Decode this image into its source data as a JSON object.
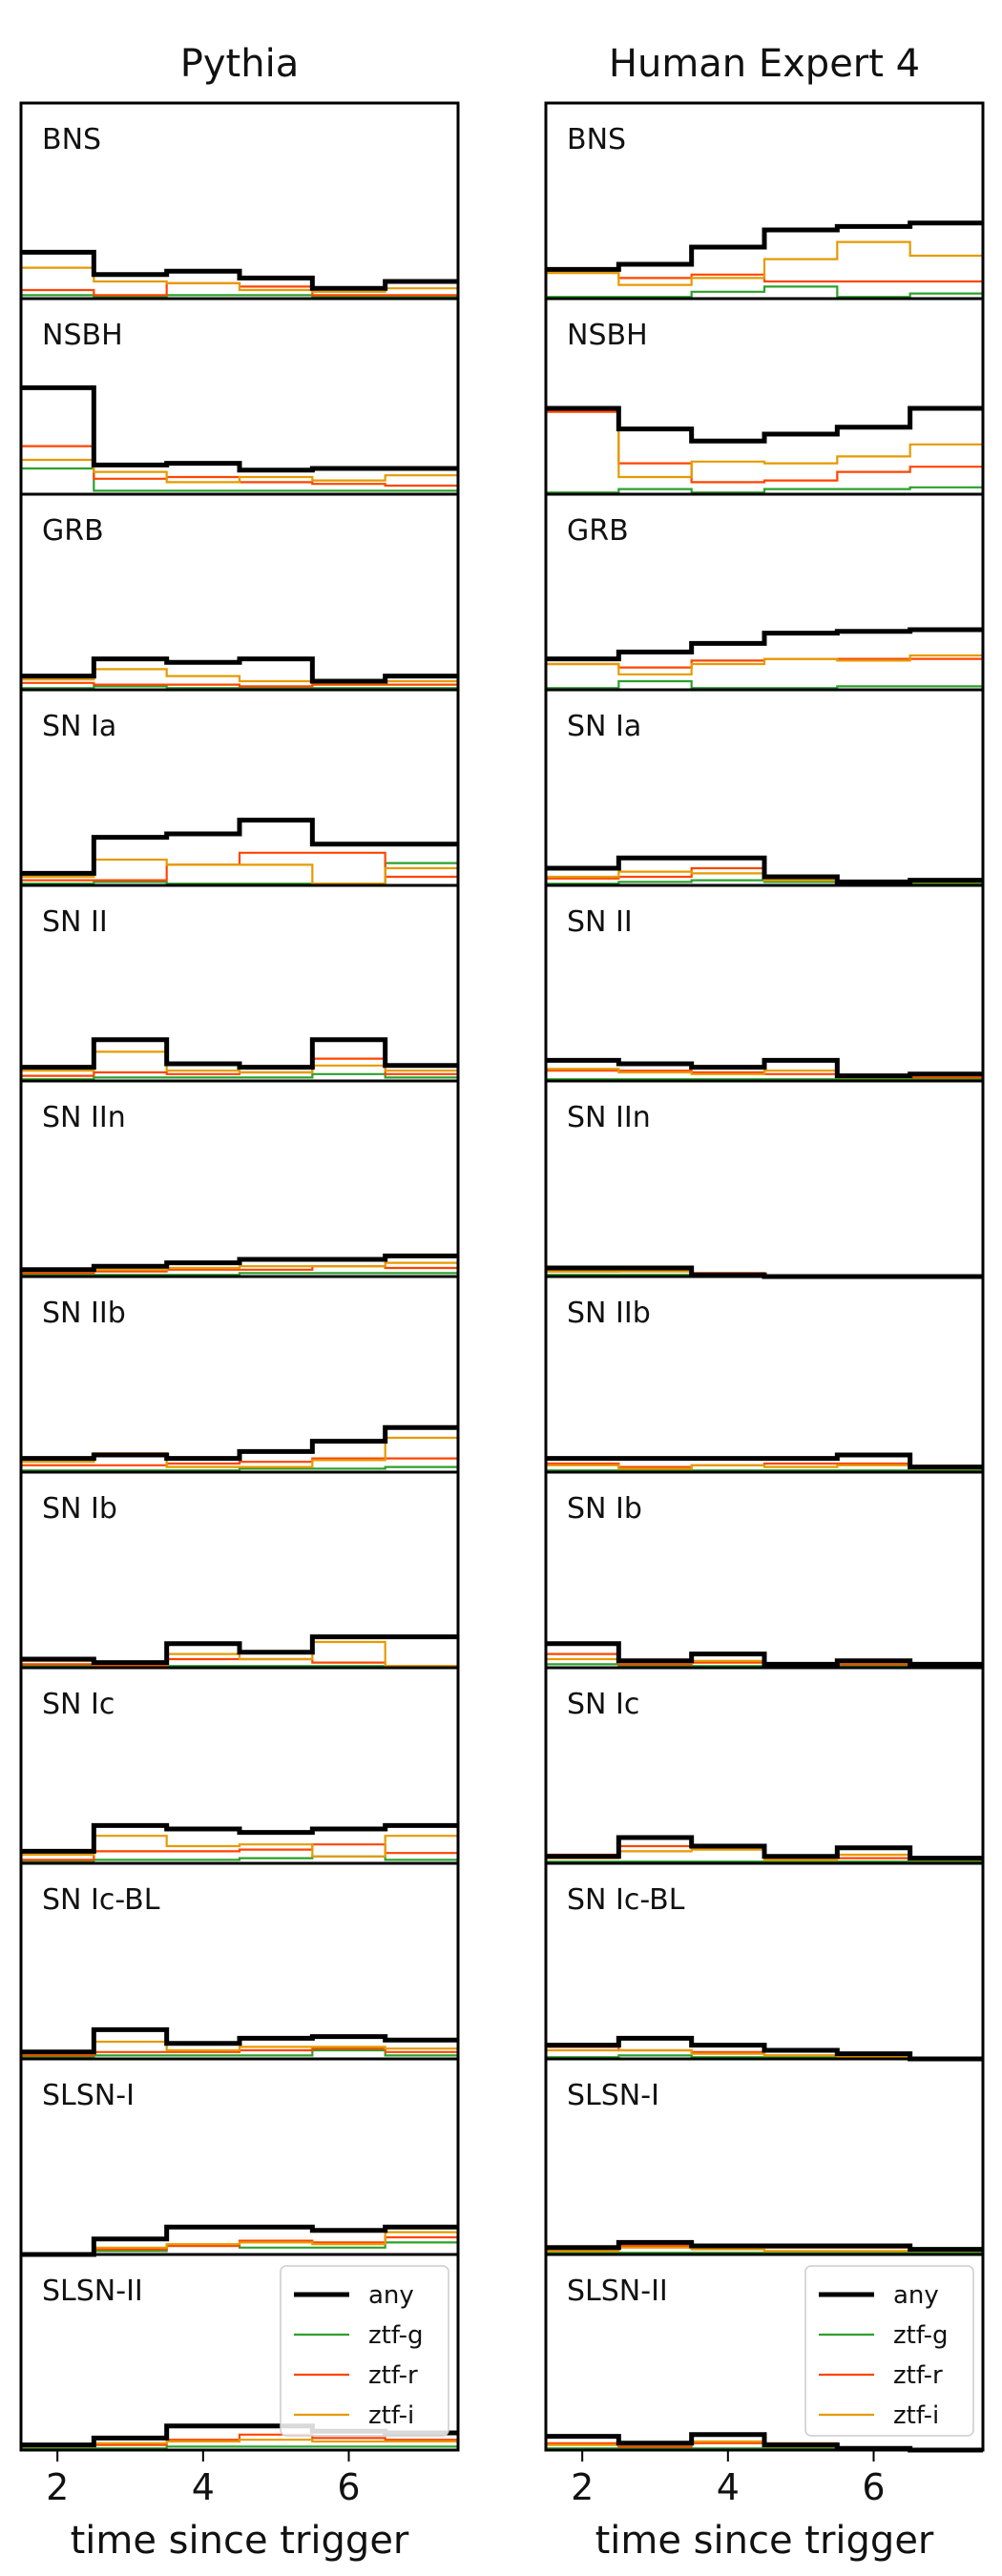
{
  "chart_data": {
    "type": "line",
    "subtype": "step-histogram-grid",
    "columns": [
      "Pythia",
      "Human Expert 4"
    ],
    "rows": [
      "BNS",
      "NSBH",
      "GRB",
      "SN Ia",
      "SN II",
      "SN IIn",
      "SN IIb",
      "SN Ib",
      "SN Ic",
      "SN Ic-BL",
      "SLSN-I",
      "SLSN-II"
    ],
    "xlabel": "time since trigger",
    "xlim": [
      1.5,
      7.5
    ],
    "xticks": [
      2,
      4,
      6
    ],
    "ylim": [
      0,
      1
    ],
    "bin_edges": [
      1.5,
      2.5,
      3.5,
      4.5,
      5.5,
      6.5,
      7.5
    ],
    "grid": false,
    "legend": {
      "placement": "top-right of bottom panels",
      "entries": [
        "any",
        "ztf-g",
        "ztf-r",
        "ztf-i"
      ]
    },
    "series_colors": {
      "any": "#000000",
      "ztf-g": "#2ca02c",
      "ztf-r": "#ff4500",
      "ztf-i": "#e69a00"
    },
    "panels": [
      {
        "column": "Pythia",
        "row": "BNS",
        "series": {
          "any": [
            0.27,
            0.14,
            0.16,
            0.12,
            0.06,
            0.1
          ],
          "ztf-i": [
            0.18,
            0.1,
            0.09,
            0.05,
            0.04,
            0.06
          ],
          "ztf-r": [
            0.05,
            0.02,
            0.09,
            0.07,
            0.02,
            0.02
          ],
          "ztf-g": [
            0.02,
            0.01,
            0.02,
            0.02,
            0.01,
            0.01
          ]
        }
      },
      {
        "column": "Human Expert 4",
        "row": "BNS",
        "series": {
          "any": [
            0.17,
            0.2,
            0.3,
            0.4,
            0.42,
            0.44
          ],
          "ztf-i": [
            0.15,
            0.08,
            0.12,
            0.23,
            0.33,
            0.25
          ],
          "ztf-r": [
            0.15,
            0.12,
            0.14,
            0.1,
            0.1,
            0.1
          ],
          "ztf-g": [
            0.01,
            0.01,
            0.04,
            0.07,
            0.01,
            0.03
          ]
        }
      },
      {
        "column": "Pythia",
        "row": "NSBH",
        "series": {
          "any": [
            0.62,
            0.17,
            0.18,
            0.14,
            0.15,
            0.15
          ],
          "ztf-i": [
            0.2,
            0.13,
            0.07,
            0.1,
            0.08,
            0.11
          ],
          "ztf-r": [
            0.28,
            0.09,
            0.1,
            0.07,
            0.06,
            0.05
          ],
          "ztf-g": [
            0.15,
            0.02,
            0.02,
            0.02,
            0.02,
            0.02
          ]
        }
      },
      {
        "column": "Human Expert 4",
        "row": "NSBH",
        "series": {
          "any": [
            0.5,
            0.38,
            0.31,
            0.35,
            0.39,
            0.5
          ],
          "ztf-i": [
            0.5,
            0.1,
            0.19,
            0.18,
            0.22,
            0.29
          ],
          "ztf-r": [
            0.48,
            0.18,
            0.07,
            0.08,
            0.13,
            0.16
          ],
          "ztf-g": [
            0.01,
            0.03,
            0.01,
            0.03,
            0.03,
            0.04
          ]
        }
      },
      {
        "column": "Pythia",
        "row": "GRB",
        "series": {
          "any": [
            0.08,
            0.18,
            0.16,
            0.18,
            0.05,
            0.08
          ],
          "ztf-i": [
            0.06,
            0.12,
            0.08,
            0.05,
            0.04,
            0.05
          ],
          "ztf-r": [
            0.04,
            0.03,
            0.03,
            0.02,
            0.03,
            0.03
          ],
          "ztf-g": [
            0.01,
            0.02,
            0.01,
            0.01,
            0.01,
            0.01
          ]
        }
      },
      {
        "column": "Human Expert 4",
        "row": "GRB",
        "series": {
          "any": [
            0.18,
            0.22,
            0.27,
            0.33,
            0.34,
            0.35
          ],
          "ztf-i": [
            0.15,
            0.09,
            0.15,
            0.18,
            0.17,
            0.2
          ],
          "ztf-r": [
            0.15,
            0.13,
            0.17,
            0.18,
            0.18,
            0.18
          ],
          "ztf-g": [
            0.01,
            0.05,
            0.01,
            0.01,
            0.02,
            0.02
          ]
        }
      },
      {
        "column": "Pythia",
        "row": "SN Ia",
        "series": {
          "any": [
            0.07,
            0.28,
            0.3,
            0.38,
            0.24,
            0.24
          ],
          "ztf-i": [
            0.05,
            0.15,
            0.12,
            0.12,
            0.01,
            0.1
          ],
          "ztf-r": [
            0.03,
            0.03,
            0.12,
            0.19,
            0.19,
            0.05
          ],
          "ztf-g": [
            0.01,
            0.02,
            0.01,
            0.01,
            0.01,
            0.13
          ]
        }
      },
      {
        "column": "Human Expert 4",
        "row": "SN Ia",
        "series": {
          "any": [
            0.1,
            0.16,
            0.16,
            0.05,
            0.02,
            0.03
          ],
          "ztf-i": [
            0.05,
            0.08,
            0.07,
            0.03,
            0.01,
            0.02
          ],
          "ztf-r": [
            0.04,
            0.05,
            0.1,
            0.04,
            0.01,
            0.03
          ],
          "ztf-g": [
            0.01,
            0.02,
            0.03,
            0.02,
            0.01,
            0.01
          ]
        }
      },
      {
        "column": "Pythia",
        "row": "SN II",
        "series": {
          "any": [
            0.08,
            0.24,
            0.1,
            0.08,
            0.24,
            0.09
          ],
          "ztf-i": [
            0.06,
            0.17,
            0.06,
            0.05,
            0.09,
            0.06
          ],
          "ztf-r": [
            0.03,
            0.05,
            0.04,
            0.05,
            0.13,
            0.04
          ],
          "ztf-g": [
            0.01,
            0.02,
            0.02,
            0.02,
            0.04,
            0.02
          ]
        }
      },
      {
        "column": "Human Expert 4",
        "row": "SN II",
        "series": {
          "any": [
            0.12,
            0.1,
            0.08,
            0.12,
            0.03,
            0.04
          ],
          "ztf-i": [
            0.07,
            0.05,
            0.04,
            0.06,
            0.02,
            0.03
          ],
          "ztf-r": [
            0.06,
            0.06,
            0.05,
            0.04,
            0.02,
            0.02
          ],
          "ztf-g": [
            0.01,
            0.01,
            0.01,
            0.01,
            0.01,
            0.01
          ]
        }
      },
      {
        "column": "Pythia",
        "row": "SN IIn",
        "series": {
          "any": [
            0.04,
            0.06,
            0.08,
            0.1,
            0.1,
            0.12
          ],
          "ztf-i": [
            0.03,
            0.04,
            0.05,
            0.06,
            0.06,
            0.08
          ],
          "ztf-r": [
            0.02,
            0.03,
            0.04,
            0.04,
            0.06,
            0.05
          ],
          "ztf-g": [
            0.01,
            0.01,
            0.01,
            0.02,
            0.02,
            0.02
          ]
        }
      },
      {
        "column": "Human Expert 4",
        "row": "SN IIn",
        "series": {
          "any": [
            0.05,
            0.05,
            0.01,
            0.0,
            0.0,
            0.0
          ],
          "ztf-i": [
            0.03,
            0.03,
            0.01,
            0.0,
            0.0,
            0.0
          ],
          "ztf-r": [
            0.03,
            0.04,
            0.02,
            0.0,
            0.0,
            0.0
          ],
          "ztf-g": [
            0.01,
            0.01,
            0.01,
            0.0,
            0.0,
            0.0
          ]
        }
      },
      {
        "column": "Pythia",
        "row": "SN IIb",
        "series": {
          "any": [
            0.08,
            0.1,
            0.08,
            0.12,
            0.18,
            0.26
          ],
          "ztf-i": [
            0.06,
            0.11,
            0.03,
            0.03,
            0.07,
            0.2
          ],
          "ztf-r": [
            0.04,
            0.04,
            0.05,
            0.06,
            0.08,
            0.08
          ],
          "ztf-g": [
            0.01,
            0.01,
            0.01,
            0.02,
            0.02,
            0.03
          ]
        }
      },
      {
        "column": "Human Expert 4",
        "row": "SN IIb",
        "series": {
          "any": [
            0.08,
            0.08,
            0.08,
            0.08,
            0.1,
            0.03
          ],
          "ztf-i": [
            0.04,
            0.02,
            0.04,
            0.03,
            0.04,
            0.02
          ],
          "ztf-r": [
            0.05,
            0.03,
            0.04,
            0.05,
            0.05,
            0.02
          ],
          "ztf-g": [
            0.01,
            0.01,
            0.01,
            0.01,
            0.01,
            0.01
          ]
        }
      },
      {
        "column": "Pythia",
        "row": "SN Ib",
        "series": {
          "any": [
            0.05,
            0.03,
            0.14,
            0.09,
            0.18,
            0.18
          ],
          "ztf-i": [
            0.04,
            0.02,
            0.08,
            0.05,
            0.15,
            0.01
          ],
          "ztf-r": [
            0.02,
            0.01,
            0.05,
            0.05,
            0.03,
            0.01
          ],
          "ztf-g": [
            0.01,
            0.01,
            0.01,
            0.01,
            0.01,
            0.01
          ]
        }
      },
      {
        "column": "Human Expert 4",
        "row": "SN Ib",
        "series": {
          "any": [
            0.14,
            0.04,
            0.08,
            0.02,
            0.04,
            0.02
          ],
          "ztf-i": [
            0.05,
            0.03,
            0.04,
            0.01,
            0.03,
            0.01
          ],
          "ztf-r": [
            0.08,
            0.02,
            0.03,
            0.02,
            0.02,
            0.01
          ],
          "ztf-g": [
            0.02,
            0.01,
            0.01,
            0.01,
            0.01,
            0.01
          ]
        }
      },
      {
        "column": "Pythia",
        "row": "SN Ic",
        "series": {
          "any": [
            0.07,
            0.22,
            0.2,
            0.18,
            0.2,
            0.22
          ],
          "ztf-i": [
            0.05,
            0.16,
            0.1,
            0.11,
            0.04,
            0.16
          ],
          "ztf-r": [
            0.02,
            0.07,
            0.07,
            0.08,
            0.11,
            0.06
          ],
          "ztf-g": [
            0.01,
            0.02,
            0.02,
            0.03,
            0.04,
            0.02
          ]
        }
      },
      {
        "column": "Human Expert 4",
        "row": "SN Ic",
        "series": {
          "any": [
            0.04,
            0.15,
            0.1,
            0.04,
            0.09,
            0.03
          ],
          "ztf-i": [
            0.03,
            0.07,
            0.08,
            0.02,
            0.05,
            0.02
          ],
          "ztf-r": [
            0.05,
            0.1,
            0.09,
            0.03,
            0.03,
            0.03
          ],
          "ztf-g": [
            0.01,
            0.01,
            0.01,
            0.01,
            0.01,
            0.01
          ]
        }
      },
      {
        "column": "Pythia",
        "row": "SN Ic-BL",
        "series": {
          "any": [
            0.04,
            0.17,
            0.09,
            0.12,
            0.13,
            0.11
          ],
          "ztf-i": [
            0.03,
            0.1,
            0.05,
            0.07,
            0.07,
            0.06
          ],
          "ztf-r": [
            0.02,
            0.04,
            0.04,
            0.05,
            0.06,
            0.04
          ],
          "ztf-g": [
            0.01,
            0.02,
            0.02,
            0.02,
            0.05,
            0.02
          ]
        }
      },
      {
        "column": "Human Expert 4",
        "row": "SN Ic-BL",
        "series": {
          "any": [
            0.08,
            0.12,
            0.08,
            0.05,
            0.03,
            0.0
          ],
          "ztf-i": [
            0.05,
            0.05,
            0.03,
            0.02,
            0.01,
            0.0
          ],
          "ztf-r": [
            0.07,
            0.05,
            0.04,
            0.02,
            0.01,
            0.0
          ],
          "ztf-g": [
            0.01,
            0.02,
            0.01,
            0.01,
            0.01,
            0.0
          ]
        }
      },
      {
        "column": "Pythia",
        "row": "SLSN-I",
        "series": {
          "any": [
            0.0,
            0.09,
            0.16,
            0.16,
            0.14,
            0.16
          ],
          "ztf-i": [
            0.0,
            0.04,
            0.06,
            0.07,
            0.06,
            0.13
          ],
          "ztf-r": [
            0.0,
            0.03,
            0.05,
            0.08,
            0.07,
            0.1
          ],
          "ztf-g": [
            0.0,
            0.02,
            0.05,
            0.04,
            0.04,
            0.07
          ]
        }
      },
      {
        "column": "Human Expert 4",
        "row": "SLSN-I",
        "series": {
          "any": [
            0.04,
            0.07,
            0.05,
            0.05,
            0.05,
            0.03
          ],
          "ztf-i": [
            0.02,
            0.04,
            0.03,
            0.02,
            0.02,
            0.02
          ],
          "ztf-r": [
            0.03,
            0.05,
            0.04,
            0.04,
            0.04,
            0.02
          ],
          "ztf-g": [
            0.01,
            0.01,
            0.01,
            0.01,
            0.01,
            0.01
          ]
        }
      },
      {
        "column": "Pythia",
        "row": "SLSN-II",
        "series": {
          "any": [
            0.03,
            0.07,
            0.14,
            0.14,
            0.11,
            0.1
          ],
          "ztf-i": [
            0.02,
            0.04,
            0.05,
            0.06,
            0.05,
            0.05
          ],
          "ztf-r": [
            0.02,
            0.03,
            0.06,
            0.09,
            0.07,
            0.06
          ],
          "ztf-g": [
            0.01,
            0.01,
            0.02,
            0.02,
            0.02,
            0.02
          ]
        }
      },
      {
        "column": "Human Expert 4",
        "row": "SLSN-II",
        "series": {
          "any": [
            0.08,
            0.04,
            0.09,
            0.03,
            0.01,
            0.0
          ],
          "ztf-i": [
            0.03,
            0.03,
            0.05,
            0.02,
            0.01,
            0.0
          ],
          "ztf-r": [
            0.04,
            0.02,
            0.04,
            0.04,
            0.01,
            0.0
          ],
          "ztf-g": [
            0.01,
            0.01,
            0.01,
            0.01,
            0.01,
            0.0
          ]
        }
      }
    ]
  }
}
